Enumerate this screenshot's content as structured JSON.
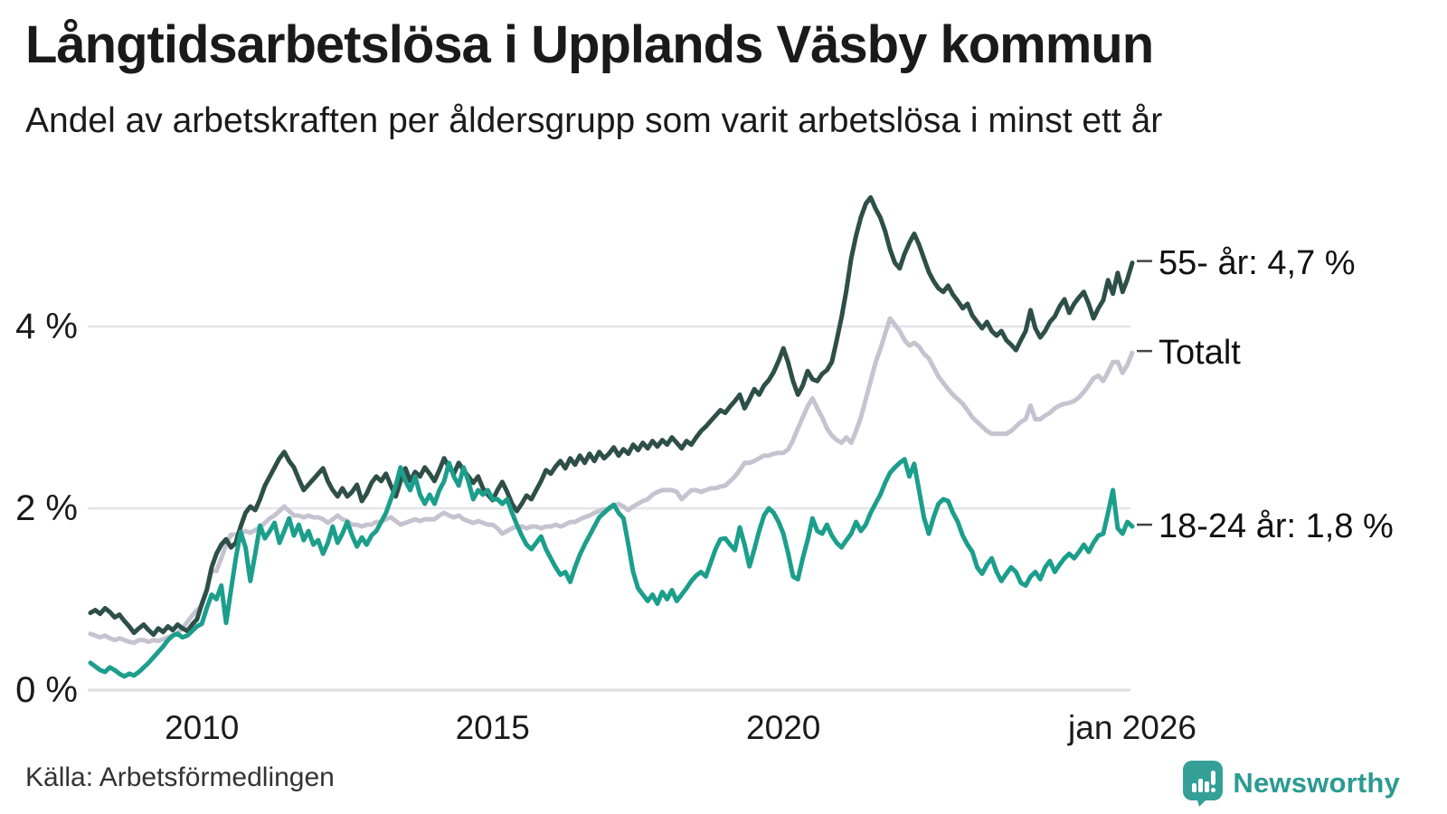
{
  "header": {
    "title": "Långtidsarbetslösa i Upplands Väsby kommun",
    "subtitle": "Andel av arbetskraften per åldersgrupp som varit arbetslösa i minst ett år"
  },
  "footer": {
    "source": "Källa: Arbetsförmedlingen",
    "brand": "Newsworthy"
  },
  "colors": {
    "series_55": "#2E4F48",
    "series_total": "#C6C3D1",
    "series_1824": "#1C9E8C",
    "gridline": "#E4E4E9",
    "brand_teal": "#2B9B91",
    "text": "#1A1A1A"
  },
  "chart_data": {
    "type": "line",
    "title": "Långtidsarbetslösa i Upplands Väsby kommun",
    "subtitle": "Andel av arbetskraften per åldersgrupp som varit arbetslösa i minst ett år",
    "unit": "%",
    "x_start": "2008-02",
    "x_end": "2026-01",
    "x_interval": "monthly",
    "xlabel": "",
    "ylabel": "",
    "ylim": [
      0,
      5.6
    ],
    "grid": true,
    "legend_position": "end-labels-right",
    "x_ticks": [
      {
        "value": 2010,
        "label": "2010"
      },
      {
        "value": 2015,
        "label": "2015"
      },
      {
        "value": 2020,
        "label": "2020"
      },
      {
        "value": 2026,
        "label": "jan 2026"
      }
    ],
    "y_ticks": [
      {
        "value": 0,
        "label": "0 %"
      },
      {
        "value": 2,
        "label": "2 %"
      },
      {
        "value": 4,
        "label": "4 %"
      }
    ],
    "series": [
      {
        "name": "55- år",
        "end_label": "55- år: 4,7 %",
        "last_value": 4.7,
        "color": "#2E4F48",
        "values": [
          0.85,
          0.88,
          0.84,
          0.9,
          0.86,
          0.8,
          0.83,
          0.76,
          0.7,
          0.63,
          0.68,
          0.72,
          0.66,
          0.61,
          0.68,
          0.64,
          0.7,
          0.66,
          0.72,
          0.68,
          0.65,
          0.72,
          0.78,
          0.95,
          1.1,
          1.35,
          1.5,
          1.6,
          1.66,
          1.57,
          1.62,
          1.8,
          1.95,
          2.02,
          1.98,
          2.1,
          2.25,
          2.35,
          2.45,
          2.55,
          2.62,
          2.52,
          2.45,
          2.32,
          2.2,
          2.26,
          2.32,
          2.38,
          2.44,
          2.3,
          2.2,
          2.13,
          2.22,
          2.13,
          2.18,
          2.26,
          2.08,
          2.16,
          2.28,
          2.35,
          2.3,
          2.38,
          2.25,
          2.13,
          2.3,
          2.44,
          2.3,
          2.4,
          2.35,
          2.45,
          2.38,
          2.3,
          2.42,
          2.55,
          2.45,
          2.38,
          2.5,
          2.42,
          2.35,
          2.28,
          2.35,
          2.22,
          2.15,
          2.09,
          2.2,
          2.29,
          2.18,
          2.05,
          1.97,
          2.05,
          2.14,
          2.1,
          2.2,
          2.3,
          2.42,
          2.38,
          2.46,
          2.52,
          2.44,
          2.55,
          2.48,
          2.58,
          2.5,
          2.6,
          2.52,
          2.62,
          2.55,
          2.6,
          2.67,
          2.58,
          2.65,
          2.6,
          2.7,
          2.64,
          2.72,
          2.66,
          2.74,
          2.68,
          2.75,
          2.7,
          2.78,
          2.72,
          2.66,
          2.74,
          2.7,
          2.78,
          2.85,
          2.9,
          2.96,
          3.02,
          3.08,
          3.05,
          3.12,
          3.18,
          3.25,
          3.1,
          3.2,
          3.31,
          3.25,
          3.35,
          3.41,
          3.5,
          3.62,
          3.76,
          3.6,
          3.4,
          3.25,
          3.35,
          3.51,
          3.42,
          3.4,
          3.48,
          3.52,
          3.61,
          3.85,
          4.1,
          4.4,
          4.75,
          5.0,
          5.2,
          5.35,
          5.42,
          5.3,
          5.2,
          5.05,
          4.85,
          4.7,
          4.64,
          4.8,
          4.92,
          5.02,
          4.9,
          4.75,
          4.6,
          4.5,
          4.42,
          4.38,
          4.45,
          4.35,
          4.28,
          4.2,
          4.25,
          4.12,
          4.05,
          3.98,
          4.05,
          3.95,
          3.9,
          3.95,
          3.85,
          3.8,
          3.74,
          3.85,
          3.95,
          4.18,
          3.98,
          3.88,
          3.95,
          4.05,
          4.11,
          4.22,
          4.3,
          4.15,
          4.25,
          4.32,
          4.38,
          4.25,
          4.09,
          4.2,
          4.29,
          4.51,
          4.36,
          4.59,
          4.38,
          4.52,
          4.7
        ]
      },
      {
        "name": "Totalt",
        "end_label": "Totalt",
        "last_value": 3.71,
        "color": "#C6C3D1",
        "values": [
          0.62,
          0.6,
          0.58,
          0.6,
          0.57,
          0.55,
          0.57,
          0.55,
          0.53,
          0.52,
          0.55,
          0.55,
          0.53,
          0.55,
          0.54,
          0.56,
          0.58,
          0.6,
          0.63,
          0.68,
          0.75,
          0.82,
          0.88,
          0.93,
          1.1,
          1.31,
          1.31,
          1.45,
          1.6,
          1.71,
          1.71,
          1.73,
          1.75,
          1.73,
          1.76,
          1.79,
          1.84,
          1.89,
          1.92,
          1.97,
          2.02,
          1.97,
          1.92,
          1.92,
          1.9,
          1.92,
          1.9,
          1.9,
          1.88,
          1.84,
          1.88,
          1.92,
          1.88,
          1.86,
          1.82,
          1.82,
          1.8,
          1.82,
          1.82,
          1.85,
          1.85,
          1.88,
          1.9,
          1.86,
          1.82,
          1.84,
          1.86,
          1.88,
          1.86,
          1.88,
          1.88,
          1.88,
          1.92,
          1.95,
          1.92,
          1.9,
          1.92,
          1.88,
          1.86,
          1.84,
          1.86,
          1.84,
          1.82,
          1.82,
          1.78,
          1.72,
          1.75,
          1.78,
          1.8,
          1.8,
          1.78,
          1.8,
          1.8,
          1.78,
          1.8,
          1.8,
          1.82,
          1.8,
          1.82,
          1.85,
          1.85,
          1.88,
          1.9,
          1.92,
          1.95,
          1.97,
          1.99,
          1.99,
          2.02,
          2.05,
          2.02,
          1.98,
          2.02,
          2.05,
          2.08,
          2.1,
          2.15,
          2.18,
          2.2,
          2.2,
          2.2,
          2.18,
          2.1,
          2.15,
          2.2,
          2.2,
          2.18,
          2.2,
          2.22,
          2.22,
          2.24,
          2.25,
          2.3,
          2.35,
          2.42,
          2.5,
          2.5,
          2.52,
          2.55,
          2.58,
          2.58,
          2.6,
          2.61,
          2.61,
          2.65,
          2.75,
          2.88,
          3.0,
          3.12,
          3.21,
          3.1,
          3.0,
          2.88,
          2.8,
          2.75,
          2.72,
          2.78,
          2.72,
          2.85,
          3.0,
          3.2,
          3.4,
          3.6,
          3.75,
          3.92,
          4.09,
          4.02,
          3.95,
          3.85,
          3.79,
          3.82,
          3.78,
          3.7,
          3.65,
          3.55,
          3.45,
          3.38,
          3.31,
          3.25,
          3.2,
          3.15,
          3.08,
          3.0,
          2.95,
          2.9,
          2.85,
          2.82,
          2.82,
          2.82,
          2.82,
          2.85,
          2.9,
          2.95,
          2.98,
          3.13,
          2.98,
          2.98,
          3.02,
          3.05,
          3.1,
          3.13,
          3.15,
          3.16,
          3.18,
          3.22,
          3.28,
          3.35,
          3.43,
          3.46,
          3.4,
          3.5,
          3.61,
          3.61,
          3.49,
          3.58,
          3.71
        ]
      },
      {
        "name": "18-24 år",
        "end_label": "18-24 år: 1,8 %",
        "last_value": 1.8,
        "color": "#1C9E8C",
        "values": [
          0.3,
          0.26,
          0.22,
          0.2,
          0.25,
          0.22,
          0.18,
          0.15,
          0.18,
          0.16,
          0.2,
          0.25,
          0.3,
          0.36,
          0.42,
          0.48,
          0.55,
          0.6,
          0.62,
          0.58,
          0.6,
          0.65,
          0.7,
          0.73,
          0.9,
          1.05,
          1.0,
          1.15,
          0.74,
          1.1,
          1.45,
          1.74,
          1.57,
          1.2,
          1.5,
          1.81,
          1.67,
          1.75,
          1.84,
          1.62,
          1.75,
          1.89,
          1.7,
          1.82,
          1.65,
          1.75,
          1.6,
          1.65,
          1.5,
          1.62,
          1.8,
          1.62,
          1.72,
          1.85,
          1.7,
          1.58,
          1.68,
          1.6,
          1.7,
          1.75,
          1.85,
          1.95,
          2.1,
          2.25,
          2.45,
          2.3,
          2.2,
          2.35,
          2.15,
          2.05,
          2.15,
          2.05,
          2.2,
          2.3,
          2.5,
          2.35,
          2.25,
          2.45,
          2.3,
          2.1,
          2.2,
          2.15,
          2.2,
          2.1,
          2.1,
          2.05,
          2.1,
          1.95,
          1.82,
          1.7,
          1.6,
          1.55,
          1.62,
          1.69,
          1.55,
          1.45,
          1.35,
          1.27,
          1.3,
          1.19,
          1.35,
          1.49,
          1.6,
          1.7,
          1.8,
          1.9,
          1.95,
          2.0,
          2.04,
          1.95,
          1.89,
          1.6,
          1.3,
          1.12,
          1.05,
          0.98,
          1.05,
          0.95,
          1.08,
          1.0,
          1.1,
          0.98,
          1.05,
          1.12,
          1.2,
          1.26,
          1.3,
          1.25,
          1.4,
          1.55,
          1.66,
          1.67,
          1.6,
          1.54,
          1.79,
          1.6,
          1.36,
          1.55,
          1.75,
          1.92,
          2.0,
          1.95,
          1.85,
          1.72,
          1.5,
          1.25,
          1.22,
          1.45,
          1.65,
          1.89,
          1.75,
          1.72,
          1.82,
          1.7,
          1.62,
          1.57,
          1.65,
          1.72,
          1.85,
          1.75,
          1.82,
          1.95,
          2.05,
          2.15,
          2.28,
          2.39,
          2.45,
          2.5,
          2.54,
          2.35,
          2.49,
          2.2,
          1.9,
          1.72,
          1.9,
          2.05,
          2.1,
          2.08,
          1.95,
          1.85,
          1.7,
          1.6,
          1.52,
          1.35,
          1.28,
          1.38,
          1.45,
          1.3,
          1.2,
          1.28,
          1.35,
          1.3,
          1.18,
          1.15,
          1.25,
          1.3,
          1.22,
          1.35,
          1.42,
          1.3,
          1.38,
          1.45,
          1.5,
          1.45,
          1.52,
          1.6,
          1.52,
          1.62,
          1.7,
          1.72,
          1.95,
          2.2,
          1.78,
          1.72,
          1.85,
          1.8
        ]
      }
    ]
  }
}
